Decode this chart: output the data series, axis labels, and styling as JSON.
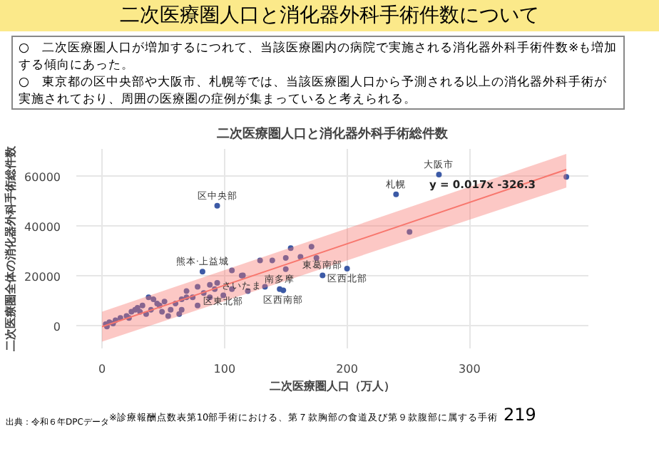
{
  "chart_data": {
    "type": "scatter",
    "title": "二次医療圏人口と消化器外科手術件数について",
    "subtitle": "二次医療圏人口と消化器外科手術総件数",
    "xlabel": "二次医療圏人口（万人）",
    "ylabel": "二次医療圏全体の消化器外科手術総件数",
    "annotations": [
      "○　二次医療圏人口が増加するにつれて、当該医療圏内の病院で実施される消化器外科手術件数※も増加する傾向にあった。",
      "○　東京都の区中央部や大阪市、札幌等では、当該医療圏人口から予測される以上の消化器外科手術が実施されており、周囲の医療圏の症例が集まっていると考えられる。",
      "y = 0.017x  -326.3",
      {
        "text": "区中央部",
        "x": 94,
        "y": 48200
      },
      {
        "text": "熊本·上益城",
        "x": 82,
        "y": 21800
      },
      {
        "text": "大阪市",
        "x": 275,
        "y": 60700
      },
      {
        "text": "札幌",
        "x": 240,
        "y": 52800
      },
      {
        "text": "さいたま",
        "x": 114,
        "y": 20200
      },
      {
        "text": "南多摩",
        "x": 145,
        "y": 14800
      },
      {
        "text": "区西南部",
        "x": 148,
        "y": 14300
      },
      {
        "text": "区東北部",
        "x": 119,
        "y": 14000
      },
      {
        "text": "東葛南部",
        "x": 180,
        "y": 20300
      },
      {
        "text": "区西北部",
        "x": 200,
        "y": 23000
      },
      "出典：令和６年DPCデータ",
      "※診療報酬点数表第10部手術における、第７款胸部の食道及び第９款腹部に属する手術",
      "219"
    ],
    "xlim": [
      -21,
      397
    ],
    "ylim": [
      -9000,
      71000
    ],
    "xticks": [
      0,
      100,
      200,
      300
    ],
    "yticks": [
      0,
      20000,
      40000,
      60000
    ],
    "grid": true,
    "series": [
      {
        "color": "#3c5aa6",
        "marker": "circle",
        "x": [
          94,
          82,
          275,
          240,
          251,
          379,
          200,
          180,
          171,
          175,
          148,
          145,
          114,
          154,
          139,
          129,
          150,
          162,
          150,
          106,
          115,
          106,
          119,
          133,
          94,
          88,
          78,
          69,
          83,
          74,
          65,
          60,
          56,
          63,
          47,
          42,
          38,
          33,
          29,
          24,
          20,
          15,
          11,
          6,
          3,
          40,
          49,
          31,
          22,
          36,
          51,
          69,
          92,
          99,
          88,
          78,
          65,
          54,
          4,
          9,
          27,
          45
        ],
        "values": [
          48200,
          21800,
          60700,
          52800,
          37700,
          59800,
          23000,
          20300,
          31800,
          27300,
          14300,
          14800,
          20200,
          31200,
          26300,
          26300,
          27300,
          27700,
          22800,
          22300,
          20300,
          14800,
          14000,
          15700,
          17300,
          16500,
          15700,
          14000,
          13200,
          11500,
          10700,
          9000,
          6500,
          4800,
          8200,
          10700,
          11500,
          8200,
          7300,
          5700,
          4000,
          3200,
          2300,
          1500,
          700,
          6500,
          5700,
          5700,
          3200,
          4800,
          9800,
          11500,
          14800,
          12300,
          11500,
          8200,
          6500,
          4000,
          -200,
          1000,
          6500,
          9000
        ]
      },
      {
        "type": "line",
        "color": "#f8766d",
        "x": [
          0,
          379
        ],
        "values": [
          -300,
          62700
        ],
        "lower": [
          -6300,
          55500
        ],
        "upper": [
          5700,
          69000
        ]
      }
    ]
  }
}
